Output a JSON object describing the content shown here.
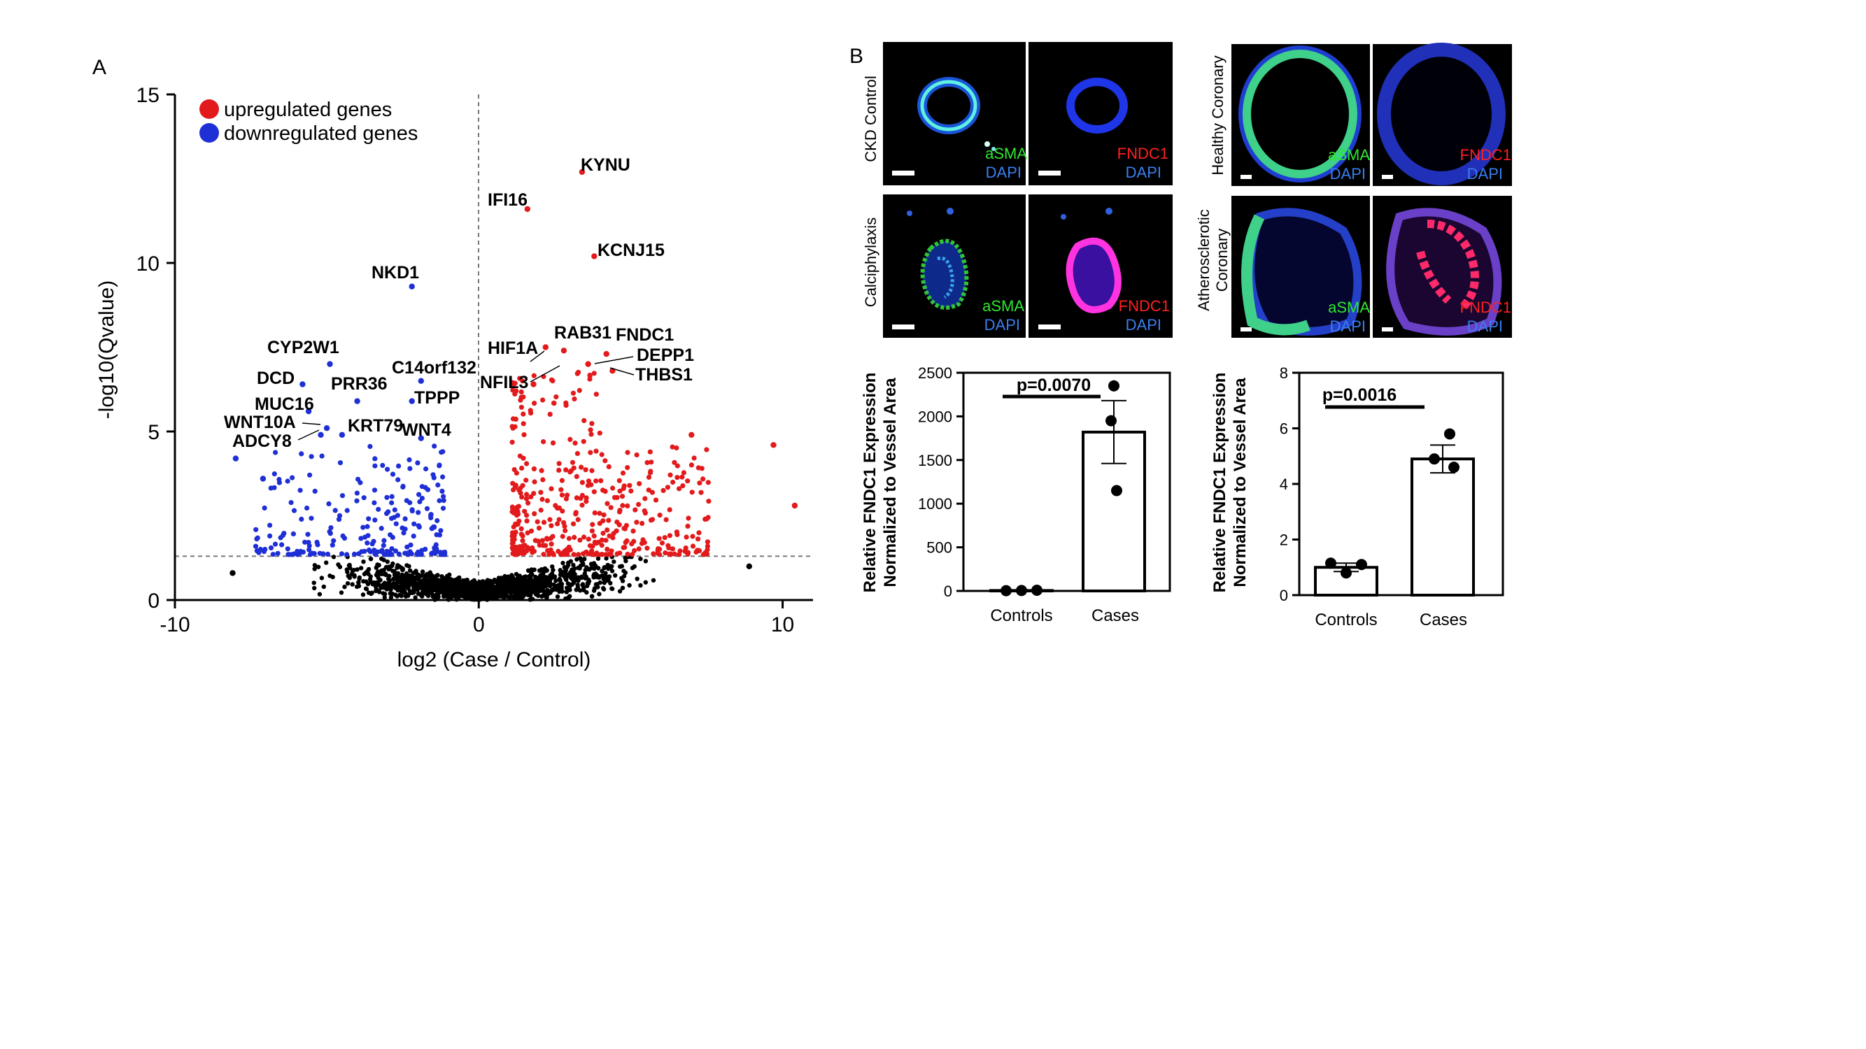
{
  "panel_a_label": "A",
  "panel_b_label": "B",
  "colors": {
    "up": "#e31a1c",
    "down": "#1f2fd6",
    "ns": "#000000"
  },
  "chart_data": [
    {
      "type": "scatter",
      "title": "",
      "xlabel": "log2 (Case / Control)",
      "ylabel": "-log10(Qvalue)",
      "xlim": [
        -10,
        11
      ],
      "ylim": [
        0,
        15
      ],
      "xticks": [
        "-10",
        "0",
        "10"
      ],
      "yticks": [
        "0",
        "5",
        "10",
        "15"
      ],
      "threshold_q": 1.3,
      "legend": [
        {
          "label": "upregulated genes",
          "color": "#e31a1c"
        },
        {
          "label": "downregulated genes",
          "color": "#1f2fd6"
        }
      ],
      "labeled_genes": [
        {
          "name": "KYNU",
          "x": 3.4,
          "y": 12.7,
          "dir": "up"
        },
        {
          "name": "IFI16",
          "x": 1.6,
          "y": 11.6,
          "dir": "up"
        },
        {
          "name": "KCNJ15",
          "x": 3.8,
          "y": 10.2,
          "dir": "up"
        },
        {
          "name": "RAB31",
          "x": 2.8,
          "y": 7.4,
          "dir": "up"
        },
        {
          "name": "HIF1A",
          "x": 2.2,
          "y": 7.5,
          "dir": "up"
        },
        {
          "name": "FNDC1",
          "x": 4.2,
          "y": 7.3,
          "dir": "up"
        },
        {
          "name": "DEPP1",
          "x": 3.6,
          "y": 7.0,
          "dir": "up"
        },
        {
          "name": "THBS1",
          "x": 4.4,
          "y": 6.8,
          "dir": "up"
        },
        {
          "name": "NFIL3",
          "x": 1.8,
          "y": 6.4,
          "dir": "up"
        },
        {
          "name": "NKD1",
          "x": -2.2,
          "y": 9.3,
          "dir": "down"
        },
        {
          "name": "CYP2W1",
          "x": -4.9,
          "y": 7.0,
          "dir": "down"
        },
        {
          "name": "C14orf132",
          "x": -1.9,
          "y": 6.5,
          "dir": "down"
        },
        {
          "name": "DCD",
          "x": -5.8,
          "y": 6.4,
          "dir": "down"
        },
        {
          "name": "PRR36",
          "x": -4.0,
          "y": 5.9,
          "dir": "down"
        },
        {
          "name": "TPPP",
          "x": -2.2,
          "y": 5.9,
          "dir": "down"
        },
        {
          "name": "MUC16",
          "x": -5.6,
          "y": 5.6,
          "dir": "down"
        },
        {
          "name": "WNT10A",
          "x": -5.0,
          "y": 5.1,
          "dir": "down"
        },
        {
          "name": "KRT79",
          "x": -4.5,
          "y": 4.9,
          "dir": "down"
        },
        {
          "name": "WNT4",
          "x": -1.9,
          "y": 4.8,
          "dir": "down"
        },
        {
          "name": "ADCY8",
          "x": -5.2,
          "y": 4.9,
          "dir": "down"
        }
      ],
      "extra_points": [
        {
          "x": 9.7,
          "y": 4.6,
          "dir": "up"
        },
        {
          "x": 10.4,
          "y": 2.8,
          "dir": "up"
        },
        {
          "x": 7.0,
          "y": 4.9,
          "dir": "up"
        },
        {
          "x": -8.0,
          "y": 4.2,
          "dir": "down"
        },
        {
          "x": -7.1,
          "y": 3.6,
          "dir": "down"
        },
        {
          "x": 8.9,
          "y": 1.0,
          "dir": "ns"
        },
        {
          "x": -8.1,
          "y": 0.8,
          "dir": "ns"
        }
      ]
    },
    {
      "type": "bar",
      "title": "",
      "categories": [
        "Controls",
        "Cases"
      ],
      "values": [
        5,
        1820
      ],
      "errors": [
        2,
        360
      ],
      "points": [
        [
          3,
          5,
          8
        ],
        [
          2350,
          1950,
          1150
        ]
      ],
      "ylim": [
        0,
        2500
      ],
      "yticks": [
        "0",
        "500",
        "1000",
        "1500",
        "2000",
        "2500"
      ],
      "ylabel_line1": "Relative FNDC1 Expression",
      "ylabel_line2": "Normalized to Vessel Area",
      "pvalue": "p=0.0070"
    },
    {
      "type": "bar",
      "title": "",
      "categories": [
        "Controls",
        "Cases"
      ],
      "values": [
        1.0,
        4.9
      ],
      "errors": [
        0.15,
        0.5
      ],
      "points": [
        [
          1.15,
          0.8,
          1.1
        ],
        [
          5.8,
          4.9,
          4.6
        ]
      ],
      "ylim": [
        0,
        8
      ],
      "yticks": [
        "0",
        "2",
        "4",
        "6",
        "8"
      ],
      "ylabel_line1": "Relative FNDC1 Expression",
      "ylabel_line2": "Normalized to Vessel Area",
      "pvalue": "p=0.0016"
    }
  ],
  "micrographs": {
    "row_labels": {
      "ckd": "CKD Control",
      "calci": "Calciphylaxis",
      "healthy": "Healthy Coronary",
      "athero_1": "Atherosclerotic",
      "athero_2": "Coronary"
    },
    "stain_asma": "aSMA",
    "stain_fndc1": "FNDC1",
    "stain_dapi": "DAPI"
  }
}
